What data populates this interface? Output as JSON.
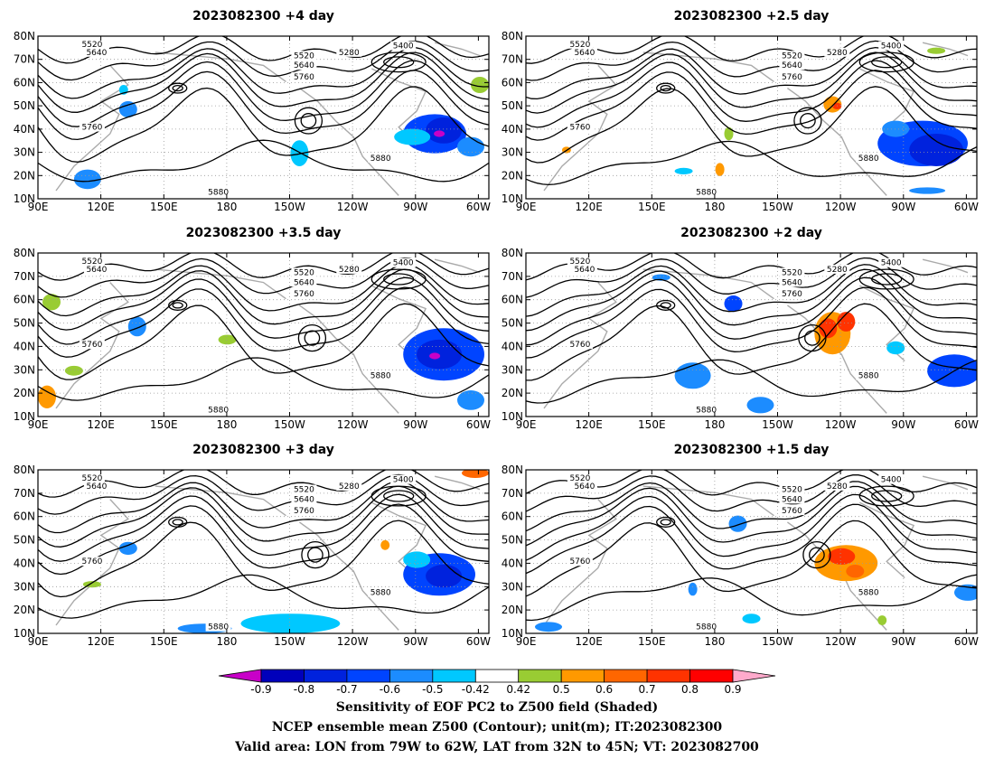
{
  "chart_data": {
    "type": "heatmap",
    "panels": [
      {
        "title": "2023082300 +4 day"
      },
      {
        "title": "2023082300 +2.5 day"
      },
      {
        "title": "2023082300 +3.5 day"
      },
      {
        "title": "2023082300 +2 day"
      },
      {
        "title": "2023082300 +3 day"
      },
      {
        "title": "2023082300 +1.5 day"
      }
    ],
    "x_ticks": [
      "90E",
      "120E",
      "150E",
      "180",
      "150W",
      "120W",
      "90W",
      "60W"
    ],
    "y_ticks": [
      "10N",
      "20N",
      "30N",
      "40N",
      "50N",
      "60N",
      "70N",
      "80N"
    ],
    "xlim_deg_east": [
      90,
      305
    ],
    "ylim_deg_north": [
      10,
      80
    ],
    "grid": "dotted",
    "contour_levels": [
      "5280",
      "5400",
      "5520",
      "5640",
      "5760",
      "5880"
    ],
    "colorbar": {
      "ticks": [
        "-0.9",
        "-0.8",
        "-0.7",
        "-0.6",
        "-0.5",
        "-0.42",
        "0.42",
        "0.5",
        "0.6",
        "0.7",
        "0.8",
        "0.9"
      ],
      "colors": [
        "#c800c8",
        "#0000bb",
        "#0022dd",
        "#0044ff",
        "#1c8cff",
        "#00c8ff",
        "#ffffff",
        "#99cc33",
        "#ff9900",
        "#ff6600",
        "#ff3300",
        "#ff0000",
        "#ffaacc"
      ]
    }
  },
  "caption": {
    "line1": "Sensitivity of EOF PC2 to Z500 field (Shaded)",
    "line2": "NCEP ensemble mean Z500 (Contour); unit(m); IT:2023082300",
    "line3": "Valid area: LON from 79W to 62W, LAT from 32N to 45N; VT: 2023082700"
  }
}
